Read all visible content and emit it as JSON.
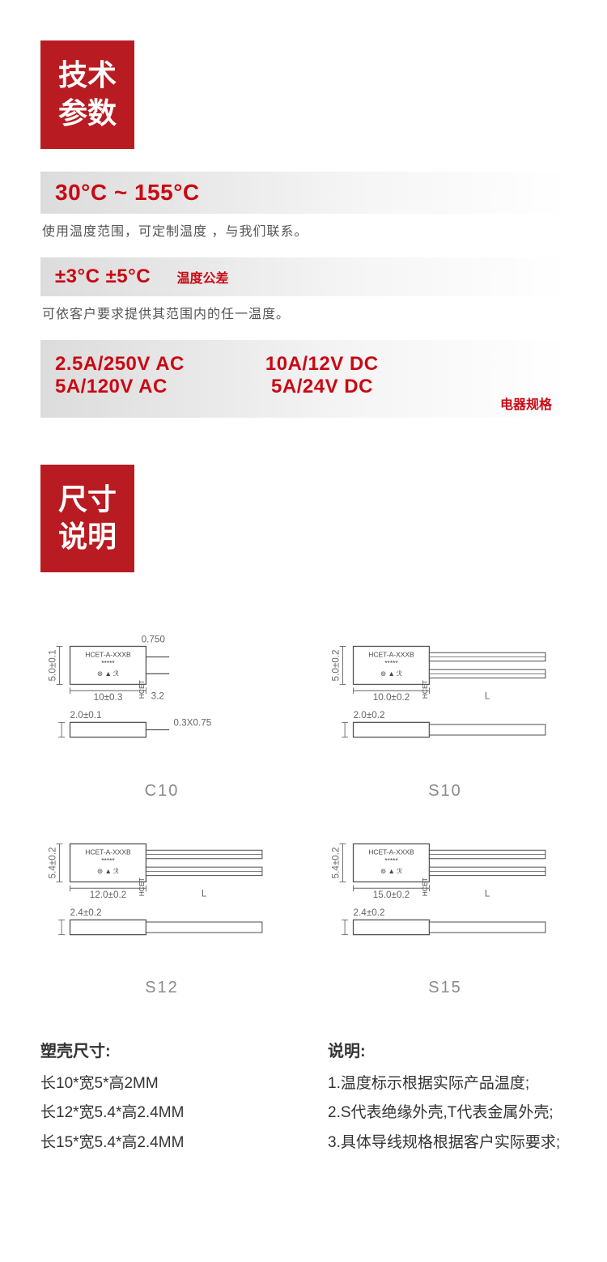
{
  "sections": {
    "tech_header": "技术\n参数",
    "size_header": "尺寸\n说明"
  },
  "temp_range": {
    "value": "30°C ~ 155°C",
    "desc": "使用温度范围，可定制温度 ，与我们联系。"
  },
  "tolerance": {
    "value": "±3°C ±5°C",
    "label": "温度公差",
    "desc": "可依客户要求提供其范围内的任一温度。"
  },
  "ratings": {
    "ac1": "2.5A/250V AC",
    "ac2": "5A/120V AC",
    "dc1": "10A/12V DC",
    "dc2": " 5A/24V DC",
    "label": "电器规格"
  },
  "diagrams": {
    "items": [
      {
        "id": "C10",
        "device_text": "HCET-A-XXXB",
        "body_len": "10±0.3",
        "pin_len": "3.2",
        "pin_hint": "0.750",
        "pin_size": "0.3X0.75",
        "height": "5.0±0.1",
        "thick": "2.0±0.1",
        "has_long_lead": false,
        "has_bare_pins": true
      },
      {
        "id": "S10",
        "device_text": "HCET-A-XXXB",
        "body_len": "10.0±0.2",
        "lead_label": "L",
        "height": "5.0±0.2",
        "thick": "2.0±0.2",
        "has_long_lead": true,
        "has_bare_pins": false
      },
      {
        "id": "S12",
        "device_text": "HCET-A-XXXB",
        "body_len": "12.0±0.2",
        "lead_label": "L",
        "height": "5.4±0.2",
        "thick": "2.4±0.2",
        "has_long_lead": true,
        "has_bare_pins": false
      },
      {
        "id": "S15",
        "device_text": "HCET-A-XXXB",
        "body_len": "15.0±0.2",
        "lead_label": "L",
        "height": "5.4±0.2",
        "thick": "2.4±0.2",
        "has_long_lead": true,
        "has_bare_pins": false
      }
    ]
  },
  "case_sizes": {
    "heading": "塑壳尺寸:",
    "lines": [
      "长10*宽5*高2MM",
      "长12*宽5.4*高2.4MM",
      "长15*宽5.4*高2.4MM"
    ]
  },
  "notes": {
    "heading": "说明:",
    "lines": [
      "1.温度标示根据实际产品温度;",
      "2.S代表绝缘外壳,T代表金属外壳;",
      "3.具体导线规格根据客户实际要求;"
    ]
  },
  "style": {
    "accent": "#b81c22",
    "red_text": "#ca0813",
    "gradient_from": "#dcdcdc",
    "gradient_to": "#ffffff",
    "body_text": "#333333",
    "caption_gray": "#8a8a8a"
  }
}
